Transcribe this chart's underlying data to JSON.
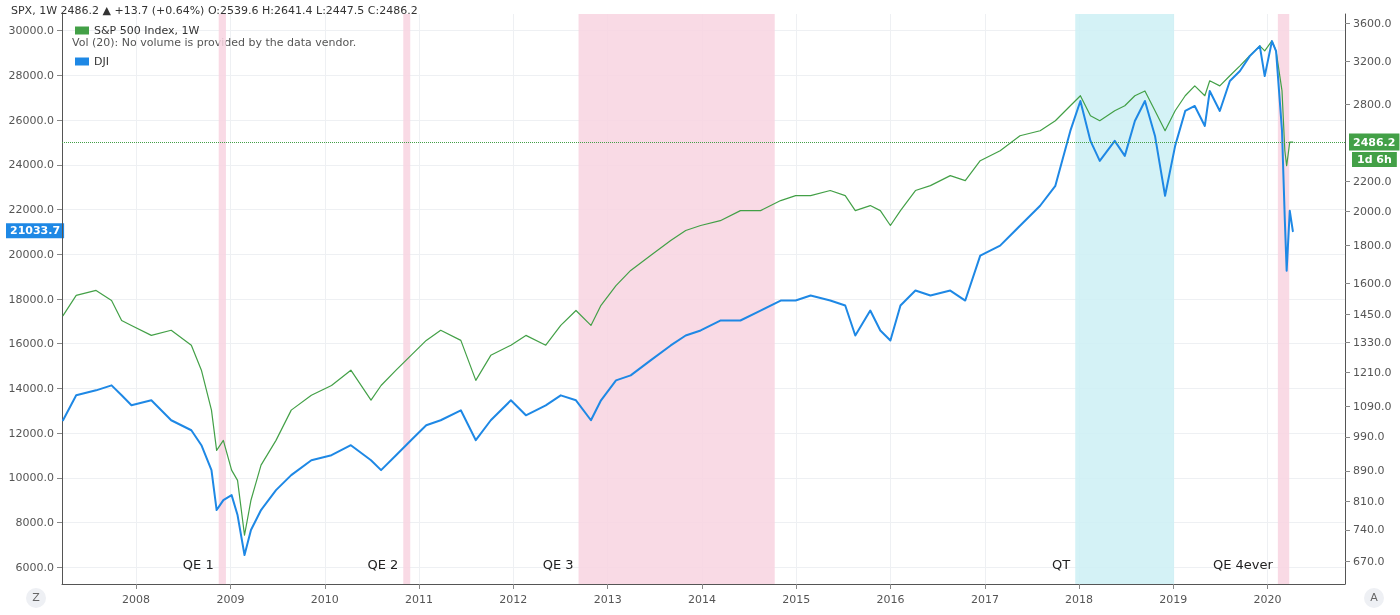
{
  "chart_data": {
    "type": "line",
    "title": "SPX, 1W 2486.2 ▲ +13.7 (+0.64%) O:2539.6 H:2641.4 L:2447.5 C:2486.2",
    "x": [
      "2007-03-24",
      "2007-05-14",
      "2007-07-30",
      "2007-09-28",
      "2007-11-06",
      "2007-12-14",
      "2008-02-29",
      "2008-05-16",
      "2008-08-02",
      "2008-09-10",
      "2008-10-19",
      "2008-11-08",
      "2008-12-04",
      "2009-01-05",
      "2009-01-28",
      "2009-02-24",
      "2009-03-21",
      "2009-04-29",
      "2009-06-26",
      "2009-08-24",
      "2009-11-10",
      "2010-01-27",
      "2010-04-12",
      "2010-06-29",
      "2010-08-07",
      "2010-10-04",
      "2010-12-01",
      "2011-01-29",
      "2011-03-26",
      "2011-06-12",
      "2011-08-09",
      "2011-10-06",
      "2011-12-23",
      "2012-02-19",
      "2012-05-06",
      "2012-07-03",
      "2012-08-31",
      "2012-10-28",
      "2012-12-06",
      "2013-02-02",
      "2013-03-31",
      "2013-06-16",
      "2013-09-02",
      "2013-10-30",
      "2013-12-27",
      "2014-03-13",
      "2014-05-30",
      "2014-08-16",
      "2014-11-02",
      "2014-12-30",
      "2015-02-26",
      "2015-05-13",
      "2015-07-10",
      "2015-08-18",
      "2015-10-15",
      "2015-11-23",
      "2016-01-01",
      "2016-02-09",
      "2016-04-07",
      "2016-06-04",
      "2016-08-20",
      "2016-10-17",
      "2016-12-14",
      "2017-03-01",
      "2017-05-17",
      "2017-08-03",
      "2017-10-01",
      "2017-11-28",
      "2018-01-06",
      "2018-02-14",
      "2018-03-22",
      "2018-05-19",
      "2018-06-27",
      "2018-08-05",
      "2018-09-13",
      "2018-10-22",
      "2018-11-30",
      "2019-01-08",
      "2019-02-16",
      "2019-03-25",
      "2019-05-03",
      "2019-05-22",
      "2019-06-30",
      "2019-08-08",
      "2019-09-16",
      "2019-10-24",
      "2019-12-02",
      "2019-12-21",
      "2020-01-18",
      "2020-02-03",
      "2020-02-26",
      "2020-03-08",
      "2020-03-15",
      "2020-03-27",
      "2020-04-08"
    ],
    "series": [
      {
        "name": "S&P 500 Index, 1W",
        "color": "#43a047",
        "axis": "y2",
        "values": [
          1446,
          1540,
          1564,
          1516,
          1424,
          1402,
          1359,
          1381,
          1318,
          1219,
          1076,
          949,
          979,
          892,
          864,
          728,
          812,
          906,
          979,
          1076,
          1127,
          1162,
          1219,
          1110,
          1162,
          1219,
          1277,
          1338,
          1381,
          1338,
          1181,
          1277,
          1318,
          1359,
          1318,
          1402,
          1469,
          1402,
          1493,
          1588,
          1665,
          1745,
          1828,
          1886,
          1916,
          1945,
          2007,
          2007,
          2071,
          2103,
          2103,
          2137,
          2103,
          2007,
          2039,
          2007,
          1916,
          2007,
          2137,
          2170,
          2239,
          2204,
          2346,
          2420,
          2536,
          2576,
          2658,
          2785,
          2874,
          2700,
          2658,
          2742,
          2785,
          2874,
          2917,
          2742,
          2576,
          2742,
          2874,
          2964,
          2874,
          3011,
          2964,
          3059,
          3155,
          3256,
          3358,
          3306,
          3411,
          3306,
          2917,
          2420,
          2309,
          2486,
          2486.2
        ]
      },
      {
        "name": "DJI",
        "color": "#1e88e5",
        "values": [
          12579,
          13694,
          13917,
          14140,
          13694,
          13248,
          13471,
          12579,
          12133,
          11464,
          10349,
          8565,
          9011,
          9234,
          8342,
          6558,
          7673,
          8565,
          9457,
          10126,
          10795,
          11018,
          11464,
          10795,
          10349,
          11018,
          11687,
          12356,
          12579,
          13025,
          11687,
          12579,
          13471,
          12802,
          13248,
          13694,
          13471,
          12579,
          13471,
          14363,
          14586,
          15255,
          15924,
          16370,
          16593,
          17038,
          17038,
          17484,
          17931,
          17931,
          18154,
          17931,
          17707,
          16370,
          17484,
          16593,
          16147,
          17707,
          18377,
          18154,
          18377,
          17931,
          19938,
          20384,
          21276,
          22168,
          23060,
          25513,
          26851,
          25067,
          24174,
          25067,
          24397,
          25960,
          26851,
          25290,
          22614,
          24844,
          26405,
          26628,
          25736,
          27297,
          26405,
          27743,
          28189,
          28858,
          29304,
          27965,
          29527,
          29081,
          25513,
          21499,
          19268,
          21945,
          21033.7
        ]
      }
    ],
    "xlim": [
      "2007-03-20",
      "2020-10-27"
    ],
    "xticks": [
      "2008",
      "2009",
      "2010",
      "2011",
      "2012",
      "2013",
      "2014",
      "2015",
      "2016",
      "2017",
      "2018",
      "2019",
      "2020"
    ],
    "ylim": [
      5260,
      30740
    ],
    "yticks": [
      {
        "value": 6000,
        "label": "6000.0"
      },
      {
        "value": 8000,
        "label": "8000.0"
      },
      {
        "value": 10000,
        "label": "10000.0"
      },
      {
        "value": 12000,
        "label": "12000.0"
      },
      {
        "value": 14000,
        "label": "14000.0"
      },
      {
        "value": 16000,
        "label": "16000.0"
      },
      {
        "value": 18000,
        "label": "18000.0"
      },
      {
        "value": 20000,
        "label": "20000.0"
      },
      {
        "value": 22000,
        "label": "22000.0"
      },
      {
        "value": 24000,
        "label": "24000.0"
      },
      {
        "value": 26000,
        "label": "26000.0"
      },
      {
        "value": 28000,
        "label": "28000.0"
      },
      {
        "value": 30000,
        "label": "30000.0"
      }
    ],
    "y2lim": [
      625,
      3710
    ],
    "y2ticks": [
      {
        "value": 670,
        "label": "670.0"
      },
      {
        "value": 740,
        "label": "740.0"
      },
      {
        "value": 810,
        "label": "810.0"
      },
      {
        "value": 890,
        "label": "890.0"
      },
      {
        "value": 990,
        "label": "990.0"
      },
      {
        "value": 1090,
        "label": "1090.0"
      },
      {
        "value": 1210,
        "label": "1210.0"
      },
      {
        "value": 1330,
        "label": "1330.0"
      },
      {
        "value": 1450,
        "label": "1450.0"
      },
      {
        "value": 1600,
        "label": "1600.0"
      },
      {
        "value": 1800,
        "label": "1800.0"
      },
      {
        "value": 2000,
        "label": "2000.0"
      },
      {
        "value": 2200,
        "label": "2200.0"
      },
      {
        "value": 2800,
        "label": "2800.0"
      },
      {
        "value": 3200,
        "label": "3200.0"
      },
      {
        "value": 3600,
        "label": "3600.0"
      }
    ],
    "log": "y2",
    "bands": [
      {
        "axis": "x",
        "from": "2008-11-16",
        "to": "2008-12-14",
        "label": "QE 1",
        "color": "#f8d3e0"
      },
      {
        "axis": "x",
        "from": "2010-11-01",
        "to": "2010-11-28",
        "label": "QE 2",
        "color": "#f8d3e0"
      },
      {
        "axis": "x",
        "from": "2012-09-10",
        "to": "2014-10-10",
        "label": "QE 3",
        "color": "#f8d3e0"
      },
      {
        "axis": "x",
        "from": "2017-12-17",
        "to": "2019-01-04",
        "label": "QT",
        "color": "#cdf0f5"
      },
      {
        "axis": "x",
        "from": "2020-02-10",
        "to": "2020-03-25",
        "label": "QE 4ever",
        "color": "#f8d3e0"
      }
    ],
    "ref_lines": [
      {
        "axis": "y2",
        "value": 2486.2,
        "label": "2486.2",
        "color": "#43a047",
        "line_style": "dotted"
      }
    ],
    "annotations": [
      "Vol (20): No volume is provided by the data vendor.",
      "21033.7",
      "1d 6h",
      "Z",
      "A"
    ],
    "legend": "top left",
    "grid": true,
    "marker": "none",
    "line_style": "solid"
  }
}
